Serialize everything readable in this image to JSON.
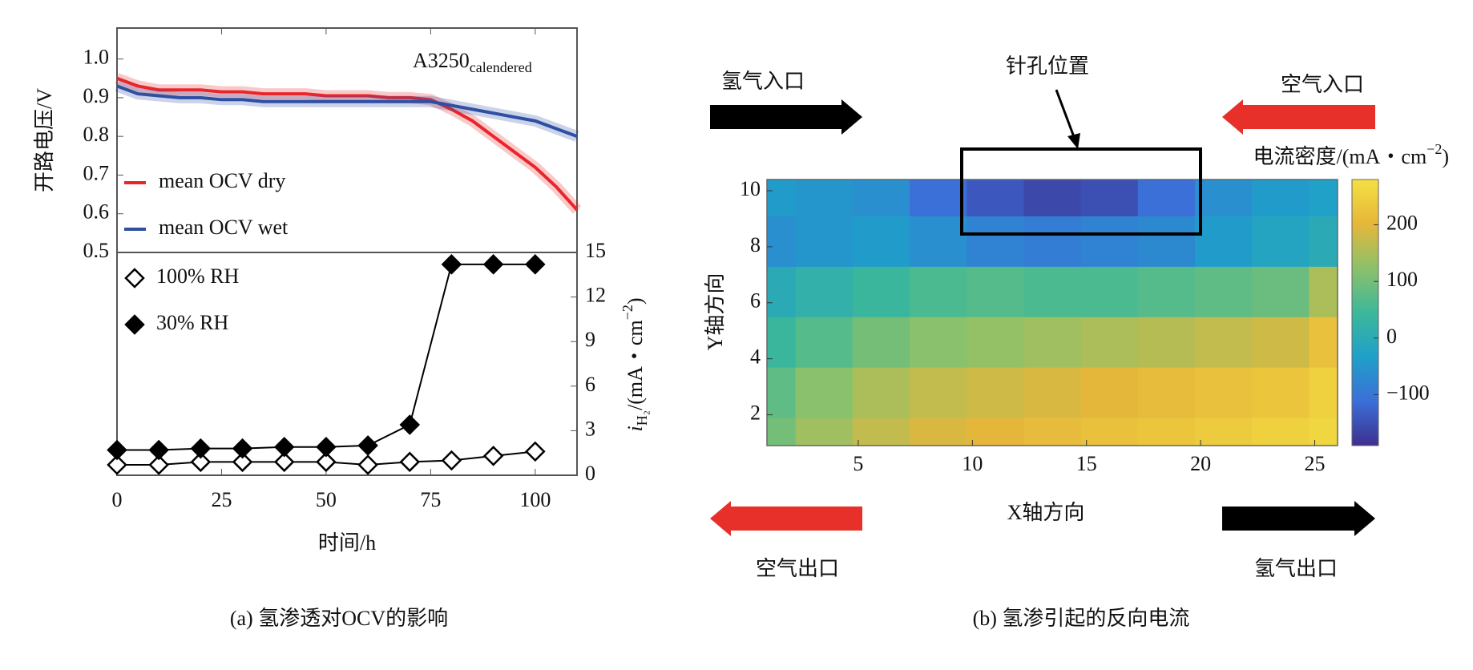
{
  "chart_data": [
    {
      "type": "line",
      "ylabel": "开路电压/V",
      "annotation": {
        "main": "A3250",
        "sub": "calendered"
      },
      "xlim": [
        0,
        110
      ],
      "ylim": [
        0.5,
        1.08
      ],
      "yticks": [
        0.5,
        0.6,
        0.7,
        0.8,
        0.9,
        {
          "value": 1,
          "label": "1.0"
        }
      ],
      "legend": "lower left",
      "x": [
        0,
        5,
        10,
        15,
        20,
        25,
        30,
        35,
        40,
        45,
        50,
        55,
        60,
        65,
        70,
        75,
        80,
        85,
        90,
        95,
        100,
        105,
        110
      ],
      "series": [
        {
          "name": "mean OCV dry",
          "color": "#e8262b",
          "values": [
            0.95,
            0.93,
            0.92,
            0.92,
            0.92,
            0.915,
            0.915,
            0.91,
            0.91,
            0.91,
            0.905,
            0.905,
            0.905,
            0.9,
            0.9,
            0.895,
            0.87,
            0.84,
            0.8,
            0.76,
            0.72,
            0.67,
            0.61
          ]
        },
        {
          "name": "mean OCV wet",
          "color": "#2f4fa3",
          "values": [
            0.93,
            0.91,
            0.905,
            0.9,
            0.9,
            0.895,
            0.895,
            0.89,
            0.89,
            0.89,
            0.89,
            0.89,
            0.89,
            0.89,
            0.89,
            0.89,
            0.88,
            0.87,
            0.86,
            0.85,
            0.84,
            0.82,
            0.8
          ]
        }
      ]
    },
    {
      "type": "line",
      "xlabel": "时间/h",
      "y2label": {
        "main": "i",
        "sub": "H₂",
        "rest": "/(mA・cm",
        "sup": "−2",
        "end": ")"
      },
      "xlim": [
        0,
        110
      ],
      "xticks": [
        0,
        25,
        50,
        75,
        100
      ],
      "y2lim": [
        0,
        15
      ],
      "y2ticks": [
        0,
        3,
        6,
        9,
        12,
        15
      ],
      "legend": "upper left",
      "x": [
        0,
        10,
        20,
        30,
        40,
        50,
        60,
        70,
        80,
        90,
        100
      ],
      "series": [
        {
          "name": "100% RH",
          "color": "#000000",
          "marker": "diamond",
          "marker_fill": "#ffffff",
          "axis": "y2",
          "values": [
            0.7,
            0.7,
            0.9,
            0.9,
            0.9,
            0.9,
            0.7,
            0.9,
            1.0,
            1.3,
            1.6
          ]
        },
        {
          "name": "30% RH",
          "color": "#000000",
          "marker": "diamond",
          "marker_fill": "#000000",
          "axis": "y2",
          "values": [
            1.7,
            1.7,
            1.8,
            1.8,
            1.9,
            1.9,
            2.0,
            3.4,
            14.2,
            14.2,
            14.2
          ]
        }
      ]
    },
    {
      "type": "heatmap",
      "xlabel": "X轴方向",
      "ylabel": "Y轴方向",
      "colorbar_label": {
        "main": "电流密度/(mA・cm",
        "sup": "−2",
        "end": ")"
      },
      "xlim": [
        1,
        26
      ],
      "ylim": [
        0.9,
        10.4
      ],
      "xticks": [
        5,
        10,
        15,
        20,
        25
      ],
      "yticks": [
        2,
        4,
        6,
        8,
        10
      ],
      "zlim": [
        -190,
        280
      ],
      "zticks": [
        {
          "value": -100,
          "label": "−100"
        },
        0,
        100,
        200
      ],
      "colormap": [
        "#3e2f8f",
        "#3b6fd8",
        "#1fa0c9",
        "#3cb89a",
        "#8cc16a",
        "#e6b73a",
        "#f4e042"
      ],
      "x": [
        1,
        3.5,
        6,
        8.5,
        11,
        13.5,
        16,
        18.5,
        21,
        23.5,
        26
      ],
      "y": [
        1,
        2.8,
        4.6,
        6.4,
        8.2,
        10
      ],
      "z": [
        [
          100,
          140,
          170,
          190,
          200,
          210,
          220,
          230,
          240,
          250,
          260
        ],
        [
          80,
          120,
          150,
          170,
          180,
          190,
          200,
          210,
          220,
          230,
          250
        ],
        [
          40,
          70,
          100,
          120,
          130,
          140,
          150,
          160,
          170,
          180,
          220
        ],
        [
          0,
          20,
          40,
          60,
          70,
          60,
          60,
          70,
          80,
          90,
          150
        ],
        [
          -60,
          -50,
          -40,
          -60,
          -80,
          -90,
          -80,
          -70,
          -40,
          -20,
          0
        ],
        [
          -40,
          -50,
          -60,
          -110,
          -140,
          -160,
          -150,
          -110,
          -60,
          -40,
          -30
        ]
      ],
      "annotations": [
        "氢气入口",
        "空气入口",
        "针孔位置",
        "空气出口",
        "氢气出口"
      ]
    }
  ],
  "captions": [
    "(a) 氢渗透对OCV的影响",
    "(b) 氢渗引起的反向电流"
  ]
}
